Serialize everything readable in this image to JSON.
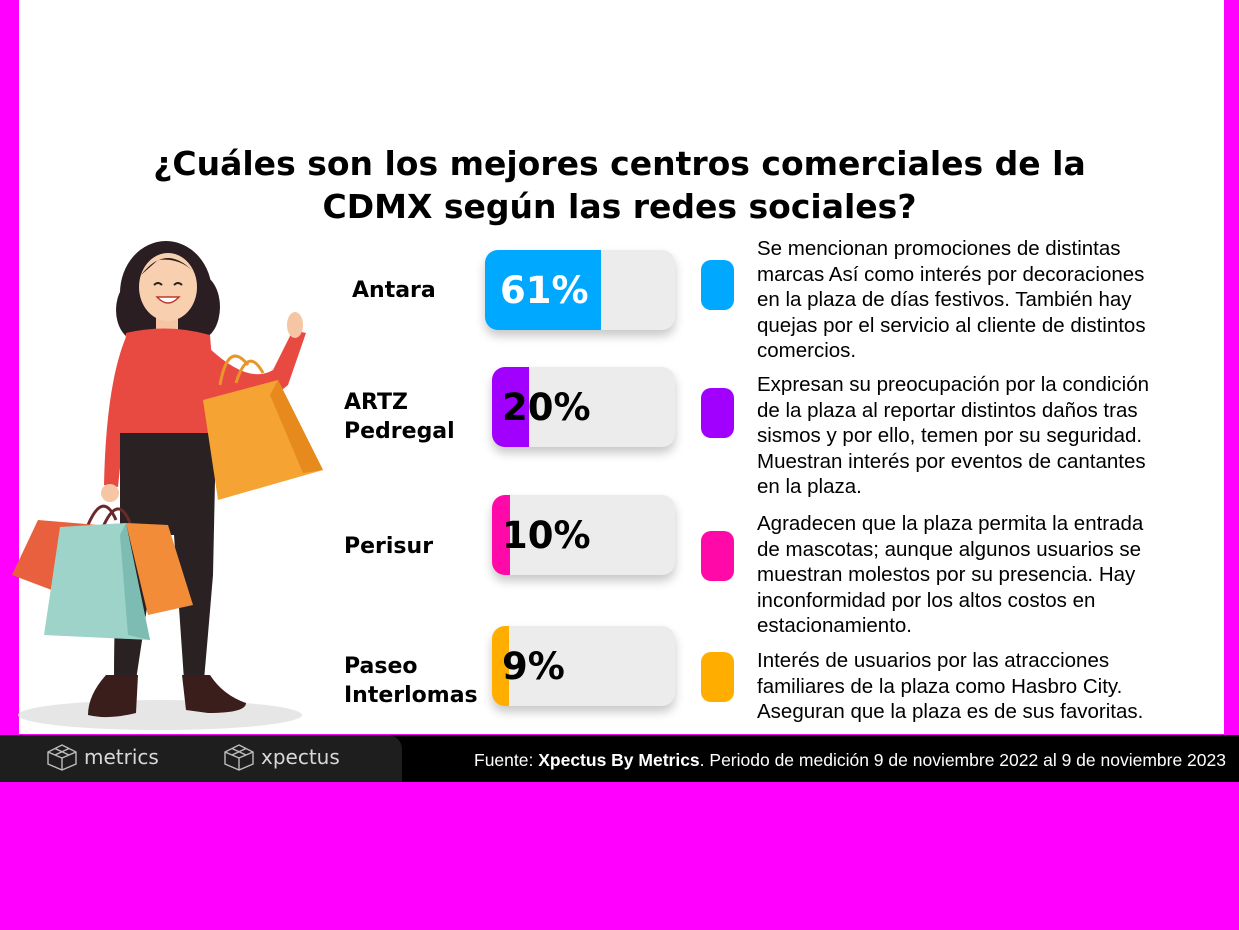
{
  "title_lines": [
    "¿Cuáles son los mejores centros comerciales de la",
    "CDMX según las redes sociales?"
  ],
  "colors": {
    "background": "#ff00ff",
    "track": "#ececec"
  },
  "chart_data": {
    "type": "bar",
    "orientation": "horizontal",
    "title": "¿Cuáles son los mejores centros comerciales de la CDMX según las redes sociales?",
    "ylim": [
      0,
      100
    ],
    "categories": [
      "Antara",
      "ARTZ Pedregal",
      "Perisur",
      "Paseo Interlomas"
    ],
    "values": [
      61,
      20,
      10,
      9
    ],
    "items": [
      {
        "label_lines": [
          "Antara"
        ],
        "value": 61,
        "value_label": "61%",
        "color": "#00a8ff",
        "description_lines": [
          "Se mencionan promociones de distintas",
          "marcas Así como interés por decoraciones",
          "en la plaza de días festivos. También hay",
          "quejas por el servicio al cliente de distintos",
          "comercios."
        ]
      },
      {
        "label_lines": [
          "ARTZ",
          "Pedregal"
        ],
        "value": 20,
        "value_label": "20%",
        "color": "#a100ff",
        "description_lines": [
          "Expresan su preocupación por la condición",
          "de la plaza al reportar distintos daños tras",
          "sismos y por ello, temen por su seguridad.",
          "Muestran interés por eventos de cantantes",
          "en la plaza."
        ]
      },
      {
        "label_lines": [
          "Perisur"
        ],
        "value": 10,
        "value_label": "10%",
        "color": "#ff0aa8",
        "description_lines": [
          "Agradecen que la plaza permita la entrada",
          "de mascotas; aunque algunos usuarios se",
          "muestran molestos por su presencia. Hay",
          "inconformidad por los altos costos en",
          "estacionamiento."
        ]
      },
      {
        "label_lines": [
          "Paseo",
          "Interlomas"
        ],
        "value": 9,
        "value_label": "9%",
        "color": "#ffae00",
        "description_lines": [
          "Interés de usuarios por las atracciones",
          "familiares de la plaza como Hasbro City.",
          "Aseguran que la plaza es de sus favoritas."
        ]
      }
    ]
  },
  "footer": {
    "logo1": "metrics",
    "logo2": "xpectus",
    "source_prefix": "Fuente: ",
    "source_bold": "Xpectus By Metrics",
    "source_rest": ". Periodo de medición 9 de noviembre 2022 al 9 de noviembre 2023"
  },
  "illustration": "woman-with-shopping-bags-illustration"
}
